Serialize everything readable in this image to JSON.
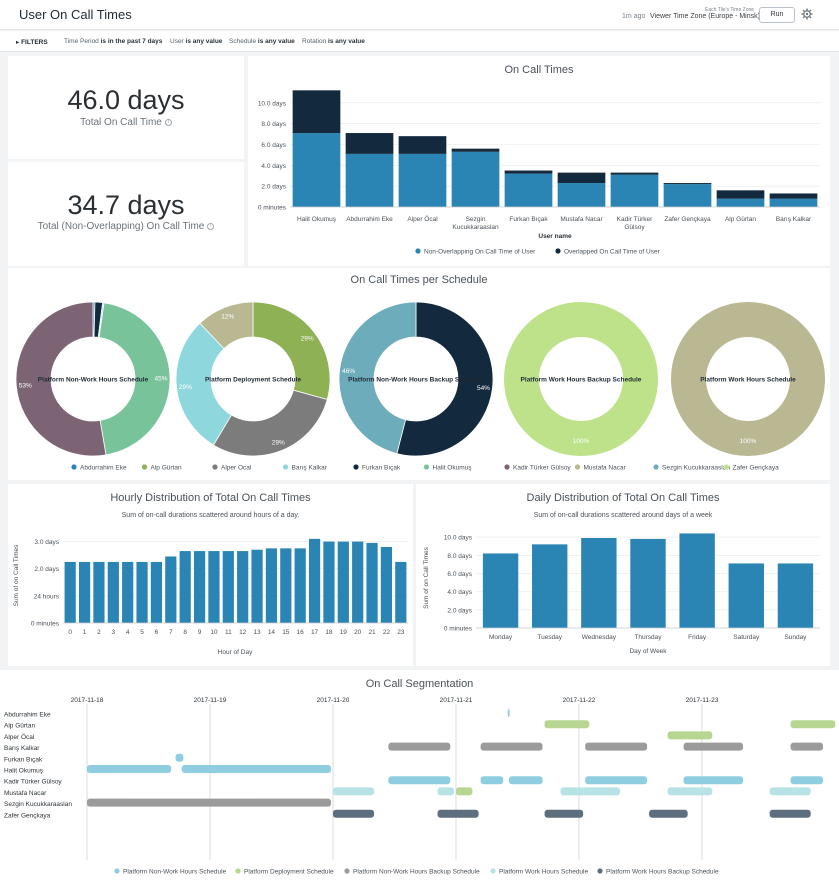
{
  "header": {
    "title": "User On Call Times",
    "ago": "1m ago",
    "timezone_label": "Each Tile's Time Zone",
    "timezone": "Viewer Time Zone (Europe - Minsk)",
    "run_label": "Run",
    "gear_icon": "gear-icon"
  },
  "filters": {
    "toggle": "FILTERS",
    "items": [
      {
        "label": "Time Period",
        "value": "is in the past 7 days"
      },
      {
        "label": "User",
        "value": "is any value"
      },
      {
        "label": "Schedule",
        "value": "is any value"
      },
      {
        "label": "Rotation",
        "value": "is any value"
      }
    ]
  },
  "kpi": {
    "total": {
      "value": "46.0 days",
      "label": "Total On Call Time"
    },
    "non_overlapping": {
      "value": "34.7 days",
      "label": "Total (Non-Overlapping) On Call Time"
    }
  },
  "charts": {
    "on_call_times": {
      "title": "On Call Times"
    },
    "per_schedule": {
      "title": "On Call Times per Schedule"
    },
    "hourly": {
      "title": "Hourly Distribution of Total On Call Times",
      "subtitle": "Sum of on-call durations scattered around hours of a day."
    },
    "daily": {
      "title": "Daily Distribution of Total On Call Times",
      "subtitle": "Sum of on-call durations scattered around days of a week"
    },
    "segmentation": {
      "title": "On Call Segmentation"
    }
  },
  "colors": {
    "blue": "#2a85b4",
    "navy": "#13293d",
    "grey": "#8e8e8e"
  },
  "chart_data": [
    {
      "id": "on_call_times",
      "type": "bar",
      "title": "On Call Times",
      "xlabel": "User name",
      "ylabel": "",
      "stacked": true,
      "ylim": [
        0,
        12
      ],
      "y_ticks": [
        "0 minutes",
        "2.0 days",
        "4.0 days",
        "6.0 days",
        "8.0 days",
        "10.0 days"
      ],
      "y_tick_values": [
        0,
        2,
        4,
        6,
        8,
        10
      ],
      "categories": [
        "Halit Okumuş",
        "Abdurrahim Eke",
        "Alper Öcal",
        "Sezgin Kucukkaraaslan",
        "Furkan Bıçak",
        "Mustafa Nacar",
        "Kadir Türker Gülsoy",
        "Zafer Gençkaya",
        "Alp Gürtan",
        "Barış Kalkar"
      ],
      "series": [
        {
          "name": "Non-Overlapping On Call Time of User",
          "color": "#2a85b4",
          "values": [
            7.1,
            5.1,
            5.1,
            5.3,
            3.2,
            2.3,
            3.1,
            2.2,
            0.8,
            0.8
          ]
        },
        {
          "name": "Overlapped On Call Time of User",
          "color": "#13293d",
          "values": [
            4.1,
            2.0,
            1.7,
            0.3,
            0.3,
            1.0,
            0.2,
            0.1,
            0.8,
            0.5
          ]
        }
      ],
      "legend": "bottom"
    },
    {
      "id": "per_schedule",
      "type": "pie",
      "title": "On Call Times per Schedule",
      "legend_entries": [
        {
          "name": "Abdurrahim Eke",
          "color": "#2a85b4"
        },
        {
          "name": "Alp Gürtan",
          "color": "#8db153"
        },
        {
          "name": "Alper Ocal",
          "color": "#7c7c7c"
        },
        {
          "name": "Barış Kalkar",
          "color": "#8ed8dd"
        },
        {
          "name": "Furkan Bıçak",
          "color": "#13293d"
        },
        {
          "name": "Halit Okumuş",
          "color": "#79c39b"
        },
        {
          "name": "Kadir Türker Gülsoy",
          "color": "#7c6475"
        },
        {
          "name": "Mustafa Nacar",
          "color": "#b9b893"
        },
        {
          "name": "Sezgin Kucukkaraaslan",
          "color": "#6dacbb"
        },
        {
          "name": "Zafer Gençkaya",
          "color": "#bde28a"
        }
      ],
      "pies": [
        {
          "name": "Platform Non-Work Hours Schedule",
          "slices": [
            {
              "user": "Abdurrahim Eke",
              "value": 0.4,
              "label": ""
            },
            {
              "user": "Furkan Bıçak",
              "value": 1.6,
              "label": ""
            },
            {
              "user": "Barış Kalkar",
              "value": 0.3,
              "label": ""
            },
            {
              "user": "Halit Okumuş",
              "value": 45.0,
              "label": "45%"
            },
            {
              "user": "Kadir Türker Gülsoy",
              "value": 52.7,
              "label": "53%"
            }
          ]
        },
        {
          "name": "Platform Deployment Schedule",
          "slices": [
            {
              "user": "Alp Gürtan",
              "value": 29,
              "label": "29%"
            },
            {
              "user": "Alper Ocal",
              "value": 29,
              "label": "29%"
            },
            {
              "user": "Barış Kalkar",
              "value": 29,
              "label": "29%"
            },
            {
              "user": "Mustafa Nacar",
              "value": 12,
              "label": "12%"
            }
          ]
        },
        {
          "name": "Platform Non-Work Hours Backup Schedule",
          "slices": [
            {
              "user": "Furkan Bıçak",
              "value": 54,
              "label": "54%"
            },
            {
              "user": "Sezgin Kucukkaraaslan",
              "value": 46,
              "label": "46%"
            }
          ]
        },
        {
          "name": "Platform Work Hours Backup Schedule",
          "slices": [
            {
              "user": "Zafer Gençkaya",
              "value": 100,
              "label": "100%"
            }
          ]
        },
        {
          "name": "Platform Work Hours Schedule",
          "slices": [
            {
              "user": "Mustafa Nacar",
              "value": 100,
              "label": "100%"
            }
          ]
        }
      ]
    },
    {
      "id": "hourly",
      "type": "bar",
      "title": "Hourly Distribution of Total On Call Times",
      "subtitle": "Sum of on-call durations scattered around hours of a day.",
      "xlabel": "Hour of Day",
      "ylabel": "Sum of on Call Times",
      "y_ticks": [
        "0 minutes",
        "24 hours",
        "2.0 days",
        "3.0 days"
      ],
      "y_tick_values": [
        0,
        1,
        2,
        3
      ],
      "ylim": [
        0,
        3.5
      ],
      "categories": [
        "0",
        "1",
        "2",
        "3",
        "4",
        "5",
        "6",
        "7",
        "8",
        "9",
        "10",
        "11",
        "12",
        "13",
        "14",
        "15",
        "16",
        "17",
        "18",
        "19",
        "20",
        "21",
        "22",
        "23"
      ],
      "values": [
        2.25,
        2.25,
        2.25,
        2.25,
        2.25,
        2.25,
        2.25,
        2.45,
        2.65,
        2.65,
        2.65,
        2.65,
        2.65,
        2.7,
        2.75,
        2.75,
        2.75,
        3.1,
        3.0,
        3.0,
        3.0,
        2.95,
        2.8,
        2.25
      ],
      "color": "#2a85b4"
    },
    {
      "id": "daily",
      "type": "bar",
      "title": "Daily Distribution of Total On Call Times",
      "subtitle": "Sum of on-call durations scattered around days of a week",
      "xlabel": "Day of Week",
      "ylabel": "Sum of on Call Times",
      "y_ticks": [
        "0 minutes",
        "2.0 days",
        "4.0 days",
        "6.0 days",
        "8.0 days",
        "10.0 days"
      ],
      "y_tick_values": [
        0,
        2,
        4,
        6,
        8,
        10
      ],
      "ylim": [
        0,
        11
      ],
      "categories": [
        "Monday",
        "Tuesday",
        "Wednesday",
        "Thursday",
        "Friday",
        "Saturday",
        "Sunday"
      ],
      "values": [
        8.2,
        9.2,
        9.9,
        9.8,
        10.4,
        7.1,
        7.1
      ],
      "color": "#2a85b4"
    },
    {
      "id": "segmentation",
      "type": "timeline",
      "title": "On Call Segmentation",
      "dates": [
        "2017-11-18",
        "2017-11-19",
        "2017-11-20",
        "2017-11-21",
        "2017-11-22",
        "2017-11-23"
      ],
      "users": [
        "Abdurrahim Eke",
        "Alp Gürtan",
        "Alper Öcal",
        "Barış Kalkar",
        "Furkan Bıçak",
        "Halit Okumuş",
        "Kadir Türker Gülsoy",
        "Mustafa Nacar",
        "Sezgin Kucukkaraaslan",
        "Zafer Gençkaya"
      ],
      "schedules": [
        {
          "name": "Platform Non-Work Hours Schedule",
          "color": "#8fcde0"
        },
        {
          "name": "Platform Deployment Schedule",
          "color": "#b7d692"
        },
        {
          "name": "Platform Non-Work Hours Backup Schedule",
          "color": "#9b9b9b"
        },
        {
          "name": "Platform Work Hours Schedule",
          "color": "#b8e3e6"
        },
        {
          "name": "Platform Work Hours Backup Schedule",
          "color": "#5d6f7e"
        }
      ],
      "segments": [
        {
          "user": 0,
          "s": 0,
          "start": 3.42,
          "end": 3.44
        },
        {
          "user": 1,
          "s": 1,
          "start": 3.72,
          "end": 4.1
        },
        {
          "user": 1,
          "s": 1,
          "start": 5.72,
          "end": 6.1
        },
        {
          "user": 2,
          "s": 1,
          "start": 4.72,
          "end": 5.1
        },
        {
          "user": 3,
          "s": 2,
          "start": 2.45,
          "end": 2.97
        },
        {
          "user": 3,
          "s": 2,
          "start": 3.2,
          "end": 3.72
        },
        {
          "user": 3,
          "s": 2,
          "start": 4.05,
          "end": 4.57
        },
        {
          "user": 3,
          "s": 2,
          "start": 4.85,
          "end": 5.35
        },
        {
          "user": 3,
          "s": 2,
          "start": 5.72,
          "end": 6.0
        },
        {
          "user": 4,
          "s": 0,
          "start": 0.72,
          "end": 0.8
        },
        {
          "user": 5,
          "s": 0,
          "start": 0.0,
          "end": 0.7
        },
        {
          "user": 5,
          "s": 0,
          "start": 0.77,
          "end": 2.0
        },
        {
          "user": 6,
          "s": 0,
          "start": 2.45,
          "end": 2.97
        },
        {
          "user": 6,
          "s": 0,
          "start": 3.2,
          "end": 3.4
        },
        {
          "user": 6,
          "s": 0,
          "start": 3.43,
          "end": 3.72
        },
        {
          "user": 6,
          "s": 0,
          "start": 4.05,
          "end": 4.57
        },
        {
          "user": 6,
          "s": 0,
          "start": 4.85,
          "end": 5.35
        },
        {
          "user": 6,
          "s": 0,
          "start": 5.72,
          "end": 6.0
        },
        {
          "user": 7,
          "s": 3,
          "start": 2.0,
          "end": 2.35
        },
        {
          "user": 7,
          "s": 3,
          "start": 2.85,
          "end": 3.0
        },
        {
          "user": 7,
          "s": 1,
          "start": 3.0,
          "end": 3.15
        },
        {
          "user": 7,
          "s": 3,
          "start": 3.85,
          "end": 4.35
        },
        {
          "user": 7,
          "s": 3,
          "start": 4.72,
          "end": 5.1
        },
        {
          "user": 7,
          "s": 3,
          "start": 5.55,
          "end": 5.9
        },
        {
          "user": 8,
          "s": 2,
          "start": 0.0,
          "end": 2.0
        },
        {
          "user": 9,
          "s": 4,
          "start": 2.0,
          "end": 2.35
        },
        {
          "user": 9,
          "s": 4,
          "start": 2.85,
          "end": 3.2
        },
        {
          "user": 9,
          "s": 4,
          "start": 3.72,
          "end": 4.05
        },
        {
          "user": 9,
          "s": 4,
          "start": 4.57,
          "end": 4.9
        },
        {
          "user": 9,
          "s": 4,
          "start": 5.55,
          "end": 5.9
        }
      ]
    }
  ]
}
